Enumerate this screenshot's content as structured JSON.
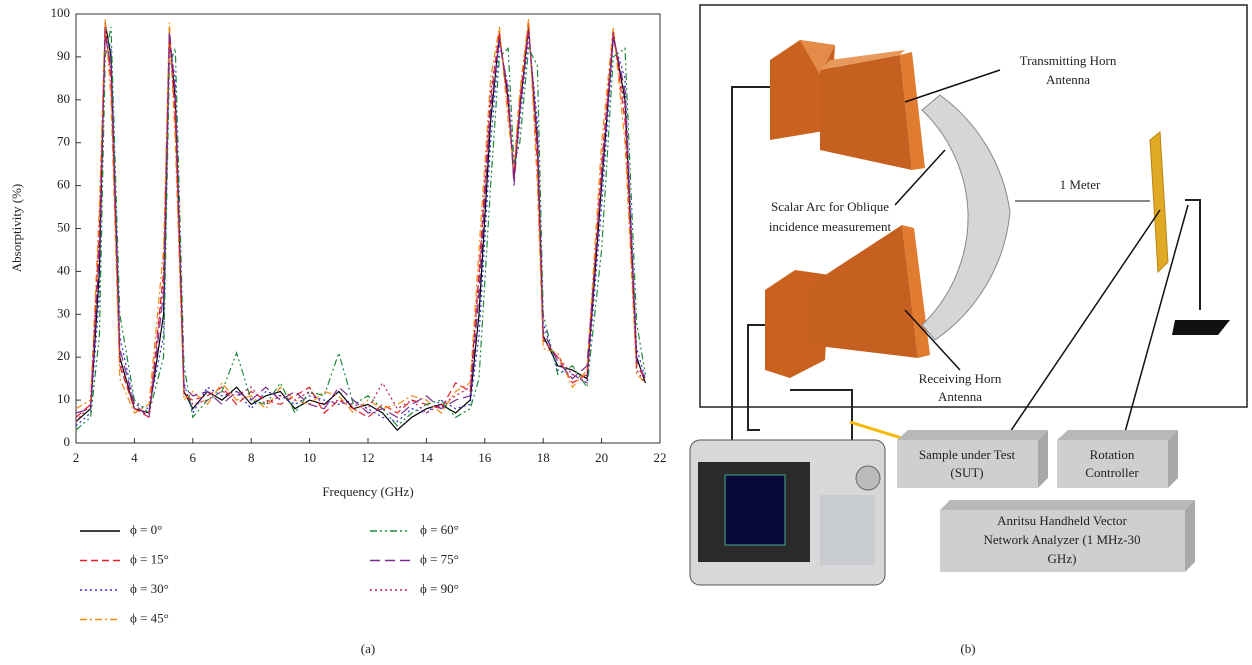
{
  "chart_data": {
    "type": "line",
    "xlabel": "Frequency (GHz)",
    "ylabel": "Absorptivity (%)",
    "xlim": [
      2,
      22
    ],
    "ylim": [
      0,
      100
    ],
    "xticks": [
      2,
      4,
      6,
      8,
      10,
      12,
      14,
      16,
      18,
      20,
      22
    ],
    "yticks": [
      0,
      10,
      20,
      30,
      40,
      50,
      60,
      70,
      80,
      90,
      100
    ],
    "x": [
      2,
      2.5,
      2.8,
      3.0,
      3.2,
      3.5,
      4,
      4.5,
      5.0,
      5.2,
      5.4,
      5.7,
      6,
      6.5,
      7,
      7.5,
      8,
      8.5,
      9,
      9.5,
      10,
      10.5,
      11,
      11.5,
      12,
      12.5,
      13,
      13.5,
      14,
      14.5,
      15,
      15.5,
      15.8,
      16.2,
      16.5,
      16.8,
      17.0,
      17.2,
      17.5,
      17.8,
      18,
      18.5,
      19,
      19.5,
      20,
      20.4,
      20.8,
      21.2,
      21.5
    ],
    "series": [
      {
        "name": "ϕ = 0°",
        "color": "#000000",
        "style": "solid",
        "values": [
          5,
          8,
          40,
          98,
          90,
          20,
          8,
          7,
          30,
          95,
          80,
          12,
          8,
          12,
          10,
          13,
          9,
          11,
          12,
          8,
          10,
          9,
          12,
          8,
          9,
          7,
          3,
          6,
          8,
          9,
          7,
          10,
          30,
          75,
          95,
          80,
          62,
          78,
          97,
          70,
          25,
          18,
          17,
          15,
          60,
          95,
          80,
          20,
          14
        ]
      },
      {
        "name": "ϕ = 15°",
        "color": "#e8202a",
        "style": "dashed",
        "values": [
          6,
          9,
          50,
          97,
          85,
          18,
          8,
          6,
          40,
          97,
          75,
          11,
          10,
          11,
          13,
          9,
          12,
          10,
          9,
          11,
          13,
          7,
          10,
          8,
          6,
          9,
          7,
          10,
          9,
          8,
          14,
          12,
          40,
          80,
          96,
          78,
          63,
          80,
          98,
          65,
          24,
          20,
          14,
          16,
          65,
          96,
          75,
          18,
          15
        ]
      },
      {
        "name": "ϕ = 30°",
        "color": "#2b2bd6",
        "style": "dotted",
        "values": [
          4,
          7,
          35,
          96,
          92,
          25,
          9,
          8,
          25,
          93,
          85,
          14,
          7,
          13,
          11,
          12,
          8,
          12,
          11,
          9,
          11,
          10,
          9,
          10,
          8,
          6,
          5,
          8,
          7,
          10,
          8,
          9,
          25,
          70,
          93,
          83,
          61,
          75,
          95,
          75,
          28,
          17,
          16,
          14,
          55,
          94,
          85,
          22,
          15
        ]
      },
      {
        "name": "ϕ = 45°",
        "color": "#f08a10",
        "style": "dashdot",
        "values": [
          8,
          10,
          55,
          99,
          80,
          15,
          7,
          9,
          45,
          98,
          70,
          10,
          12,
          9,
          14,
          10,
          11,
          8,
          13,
          10,
          9,
          12,
          11,
          7,
          10,
          8,
          9,
          11,
          10,
          7,
          12,
          14,
          45,
          85,
          97,
          75,
          64,
          82,
          99,
          60,
          22,
          21,
          13,
          17,
          70,
          97,
          70,
          16,
          14
        ]
      },
      {
        "name": "ϕ = 60°",
        "color": "#1e8a3a",
        "style": "dashdotdot",
        "values": [
          3,
          6,
          25,
          90,
          97,
          30,
          10,
          7,
          20,
          88,
          92,
          18,
          6,
          10,
          12,
          21,
          10,
          9,
          14,
          7,
          12,
          11,
          21,
          9,
          11,
          8,
          4,
          7,
          9,
          10,
          6,
          8,
          15,
          60,
          90,
          92,
          65,
          70,
          92,
          88,
          30,
          16,
          18,
          13,
          45,
          90,
          92,
          28,
          16
        ]
      },
      {
        "name": "ϕ = 75°",
        "color": "#7a2a8a",
        "style": "longdash",
        "values": [
          7,
          8,
          45,
          95,
          88,
          22,
          9,
          6,
          35,
          96,
          82,
          13,
          11,
          12,
          9,
          12,
          10,
          13,
          10,
          12,
          9,
          8,
          13,
          10,
          7,
          8,
          6,
          9,
          11,
          8,
          10,
          11,
          35,
          78,
          94,
          82,
          60,
          77,
          96,
          72,
          26,
          19,
          15,
          18,
          62,
          95,
          82,
          19,
          15
        ]
      },
      {
        "name": "ϕ = 90°",
        "color": "#c2185b",
        "style": "dotted",
        "values": [
          5,
          9,
          48,
          97,
          86,
          19,
          8,
          7,
          38,
          94,
          78,
          12,
          9,
          10,
          12,
          11,
          13,
          9,
          11,
          10,
          12,
          9,
          10,
          9,
          8,
          14,
          8,
          10,
          7,
          9,
          11,
          13,
          38,
          82,
          95,
          79,
          62,
          79,
          97,
          68,
          24,
          20,
          16,
          14,
          64,
          96,
          78,
          17,
          14
        ]
      }
    ]
  },
  "panel_labels": [
    "(a)",
    "(b)"
  ],
  "diagram": {
    "transmitting_horn": [
      "Transmitting Horn",
      "Antenna"
    ],
    "scalar_arc": [
      "Scalar Arc for Oblique",
      "incidence measurement"
    ],
    "distance": "1 Meter",
    "receiving_horn": [
      "Receiving Horn",
      "Antenna"
    ],
    "sample": [
      "Sample under Test",
      "(SUT)"
    ],
    "rotation": [
      "Rotation",
      "Controller"
    ],
    "analyzer": [
      "Anritsu Handheld Vector",
      "Network Analyzer (1 MHz-30",
      "GHz)"
    ]
  }
}
